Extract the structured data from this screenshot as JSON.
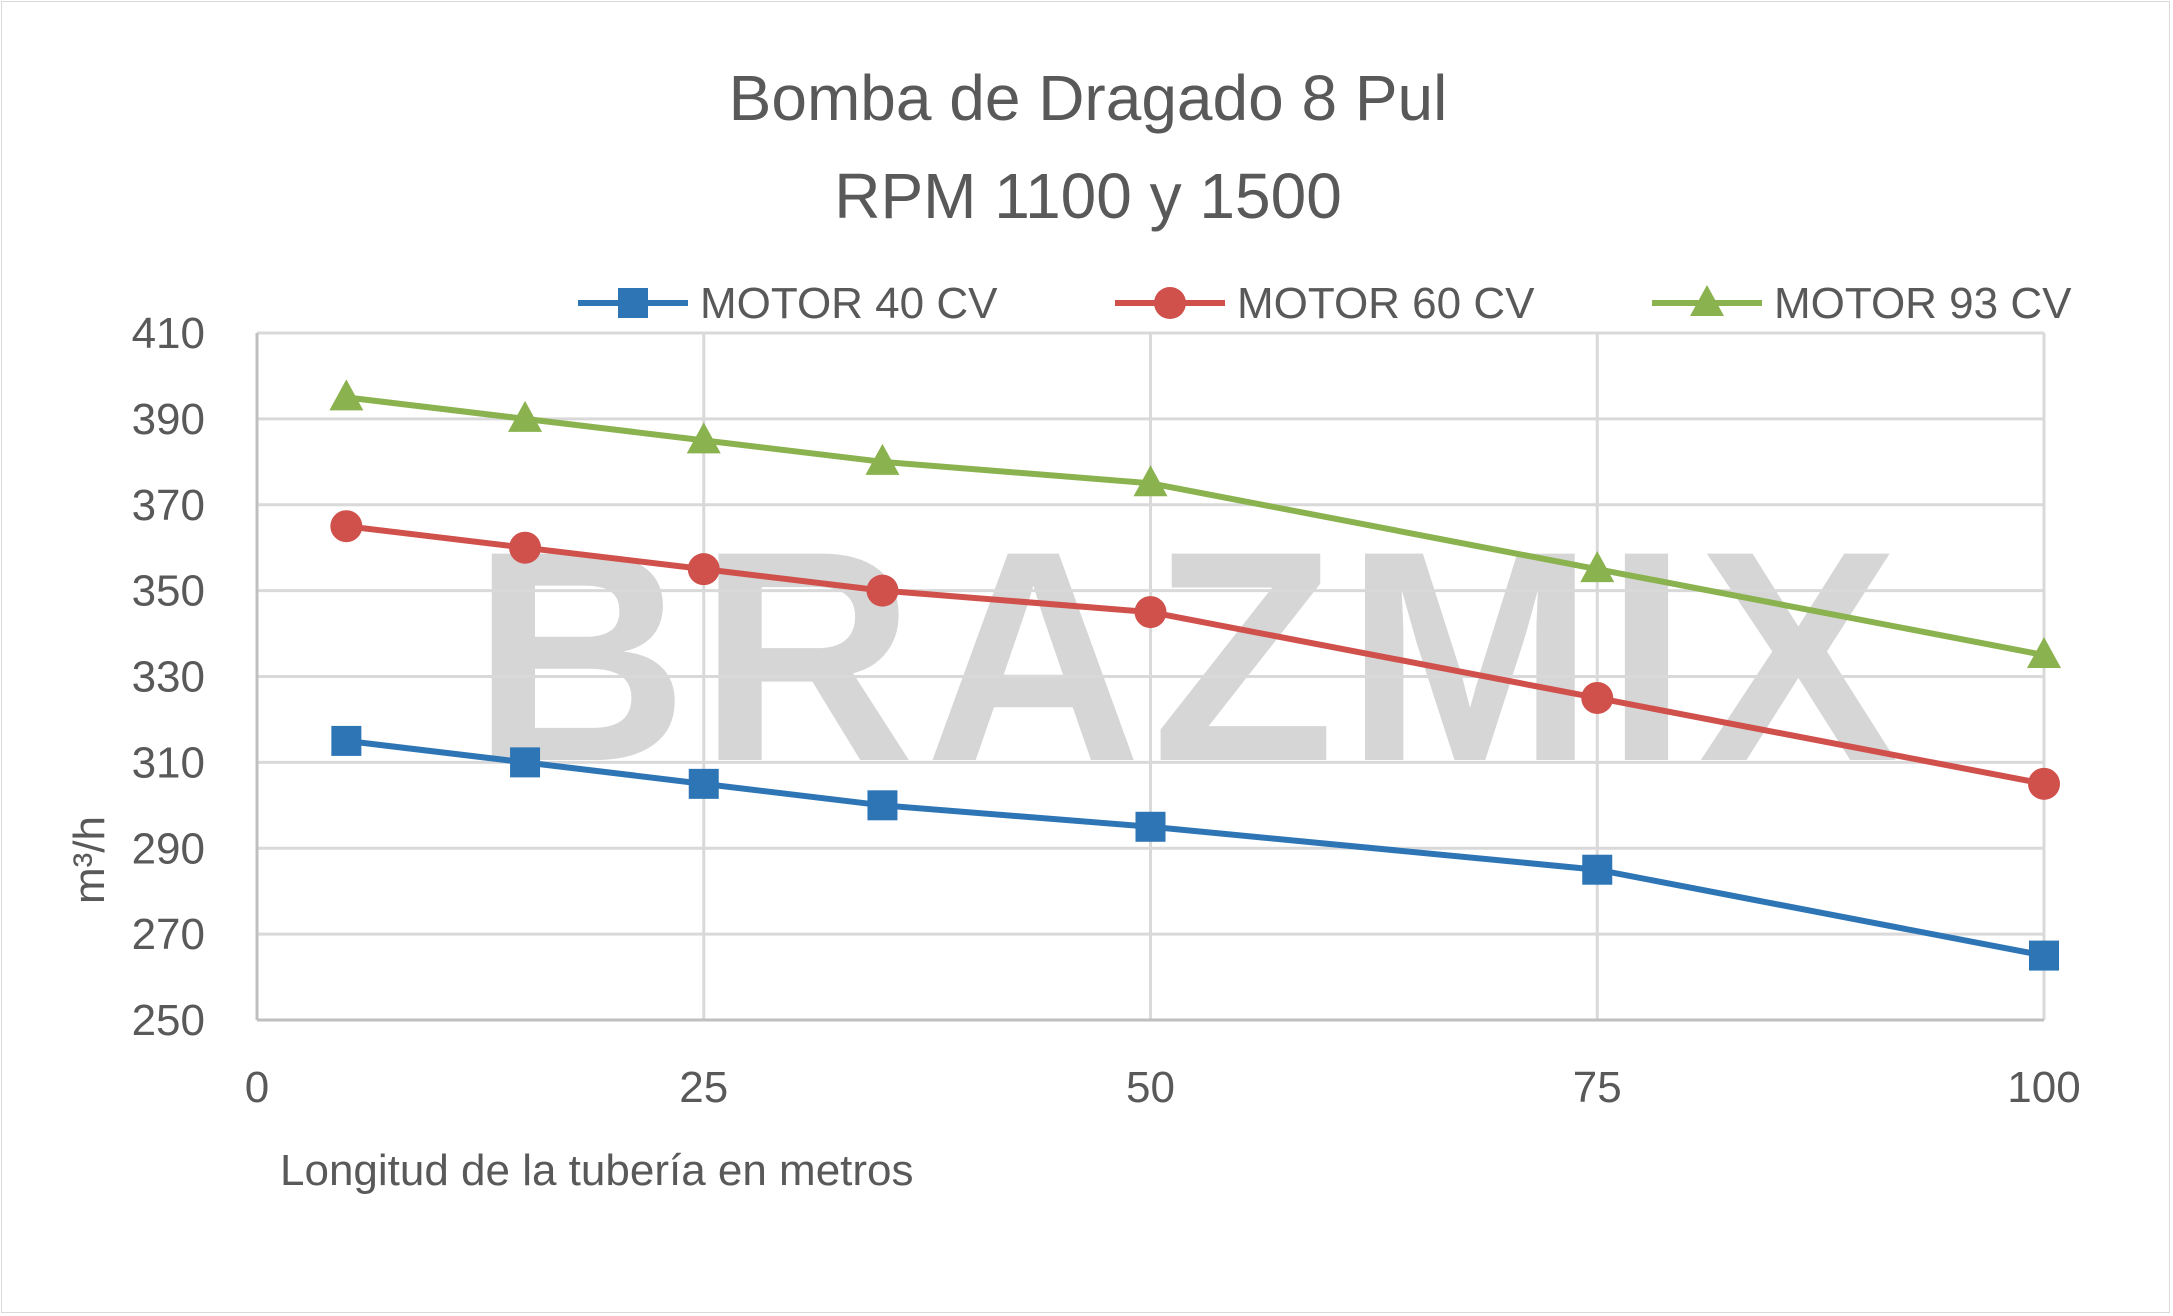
{
  "chart_data": {
    "type": "line",
    "title": [
      "Bomba de Dragado 8 Pul",
      "RPM 1100 y 1500"
    ],
    "xlabel": "Longitud de la tubería en metros",
    "ylabel": "m³/h",
    "xlim": [
      0,
      100
    ],
    "ylim": [
      250,
      410
    ],
    "xticks": [
      "0",
      "25",
      "50",
      "75",
      "100"
    ],
    "xtick_values": [
      0,
      25,
      50,
      75,
      100
    ],
    "yticks": [
      "250",
      "270",
      "290",
      "310",
      "330",
      "350",
      "370",
      "390",
      "410"
    ],
    "ytick_values": [
      250,
      270,
      290,
      310,
      330,
      350,
      370,
      390,
      410
    ],
    "grid": true,
    "legend_position": "top",
    "watermark": "BRAZMIX",
    "x": [
      5,
      15,
      25,
      35,
      50,
      75,
      100
    ],
    "series": [
      {
        "name": "MOTOR 40 CV",
        "color": "#2e75b6",
        "marker": "square",
        "values": [
          315,
          310,
          305,
          300,
          295,
          285,
          265
        ]
      },
      {
        "name": "MOTOR 60 CV",
        "color": "#d0504c",
        "marker": "circle",
        "values": [
          365,
          360,
          355,
          350,
          345,
          325,
          305
        ]
      },
      {
        "name": "MOTOR 93 CV",
        "color": "#8ab24f",
        "marker": "triangle",
        "values": [
          395,
          390,
          385,
          380,
          375,
          355,
          335
        ]
      }
    ]
  }
}
